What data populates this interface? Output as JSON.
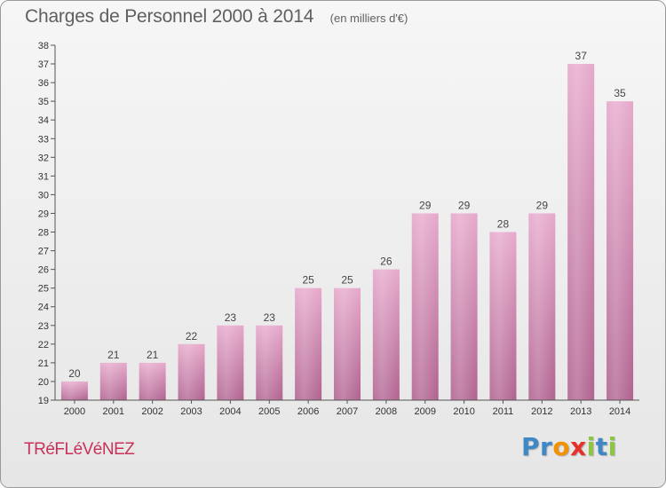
{
  "chart_data": {
    "type": "bar",
    "title": "Charges de Personnel 2000 à 2014",
    "subtitle": "(en milliers d'€)",
    "categories": [
      "2000",
      "2001",
      "2002",
      "2003",
      "2004",
      "2005",
      "2006",
      "2007",
      "2008",
      "2009",
      "2010",
      "2011",
      "2012",
      "2013",
      "2014"
    ],
    "values": [
      20,
      21,
      21,
      22,
      23,
      23,
      25,
      25,
      26,
      29,
      29,
      28,
      29,
      37,
      35
    ],
    "ylim": [
      19,
      38
    ],
    "yticks": [
      19,
      20,
      21,
      22,
      23,
      24,
      25,
      26,
      27,
      28,
      29,
      30,
      31,
      32,
      33,
      34,
      35,
      36,
      37,
      38
    ],
    "grid": false,
    "bar_color": "#d98bb4"
  },
  "commune": "TRéFLéVéNEZ",
  "logo": {
    "text": "Proxiti",
    "letters": [
      {
        "ch": "P",
        "color": "#3f88c5"
      },
      {
        "ch": "r",
        "color": "#3f88c5"
      },
      {
        "ch": "o",
        "color": "#f29200"
      },
      {
        "ch": "x",
        "color": "#e4312b"
      },
      {
        "ch": "i",
        "color": "#8cc63f"
      },
      {
        "ch": "t",
        "color": "#3f88c5"
      },
      {
        "ch": "i",
        "color": "#8cc63f"
      }
    ]
  }
}
